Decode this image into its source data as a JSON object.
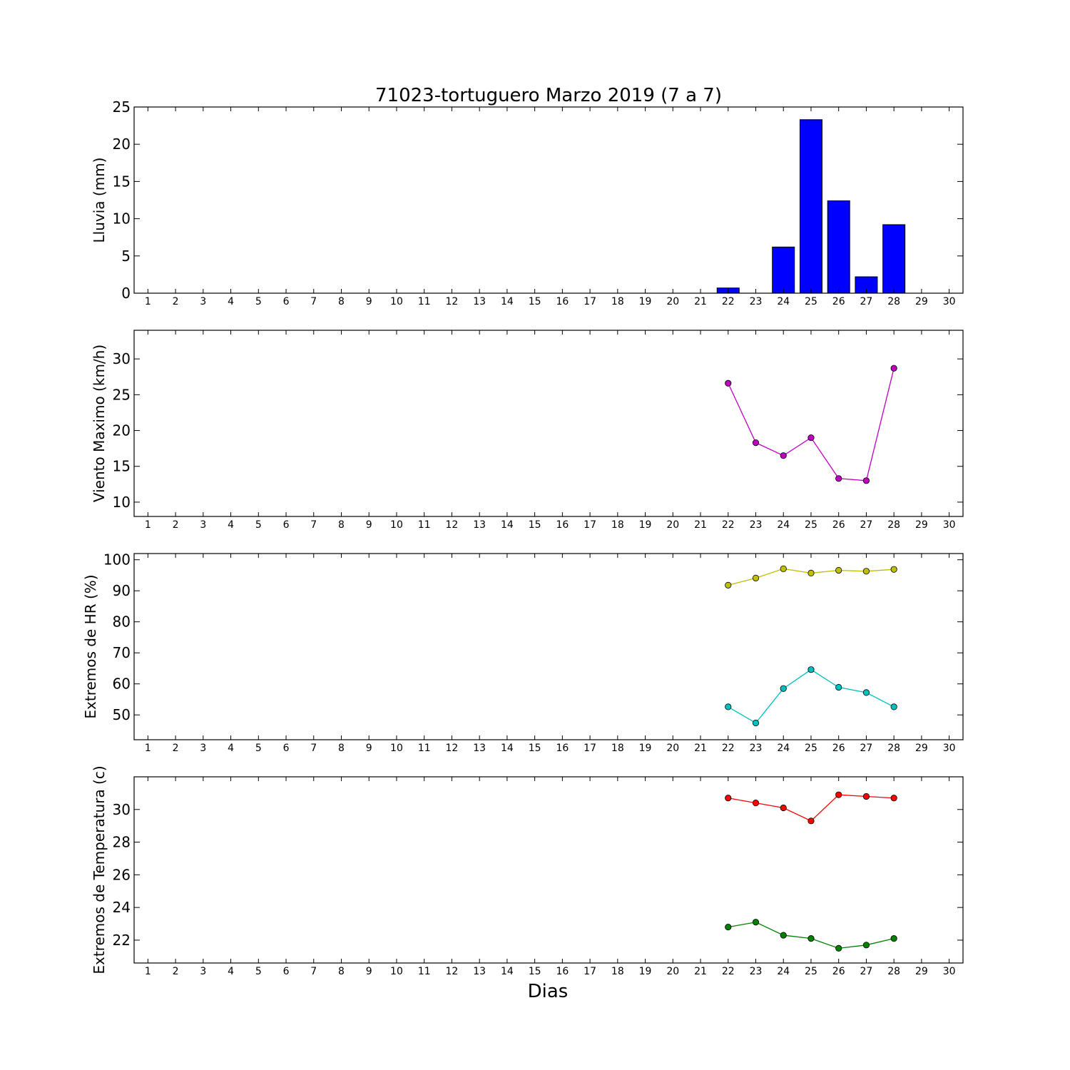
{
  "chart_data": {
    "title": "71023-tortuguero Marzo 2019  (7 a 7)",
    "xlabel": "Dias",
    "x": [
      1,
      2,
      3,
      4,
      5,
      6,
      7,
      8,
      9,
      10,
      11,
      12,
      13,
      14,
      15,
      16,
      17,
      18,
      19,
      20,
      21,
      22,
      23,
      24,
      25,
      26,
      27,
      28,
      29,
      30
    ],
    "xlim": [
      0.5,
      30.5
    ],
    "panels": [
      {
        "type": "bar",
        "ylabel": "Lluvia (mm)",
        "ylim": [
          0,
          25
        ],
        "yticks": [
          0,
          5,
          10,
          15,
          20,
          25
        ],
        "series": [
          {
            "color": "#0000ff",
            "x": [
              22,
              23,
              24,
              25,
              26,
              27,
              28
            ],
            "values": [
              0.7,
              0.0,
              6.2,
              23.3,
              12.4,
              2.2,
              9.2
            ]
          }
        ]
      },
      {
        "type": "line",
        "ylabel": "Viento Maximo (km/h)",
        "ylim": [
          8,
          34
        ],
        "yticks": [
          10,
          15,
          20,
          25,
          30
        ],
        "series": [
          {
            "color": "#bf00bf",
            "x": [
              22,
              23,
              24,
              25,
              26,
              27,
              28
            ],
            "values": [
              26.6,
              18.3,
              16.5,
              19.0,
              13.3,
              13.0,
              28.7
            ]
          }
        ]
      },
      {
        "type": "line",
        "ylabel": "Extremos de HR (%)",
        "ylim": [
          42,
          102
        ],
        "yticks": [
          50,
          60,
          70,
          80,
          90,
          100
        ],
        "series": [
          {
            "color": "#bfbf00",
            "x": [
              22,
              23,
              24,
              25,
              26,
              27,
              28
            ],
            "values": [
              91.8,
              94.1,
              97.1,
              95.7,
              96.6,
              96.3,
              96.9
            ]
          },
          {
            "color": "#00bfbf",
            "x": [
              22,
              23,
              24,
              25,
              26,
              27,
              28
            ],
            "values": [
              52.6,
              47.4,
              58.5,
              64.6,
              58.9,
              57.2,
              52.6
            ]
          }
        ]
      },
      {
        "type": "line",
        "ylabel": "Extremos de Temperatura (c)",
        "ylim": [
          20.6,
          32.0
        ],
        "yticks": [
          22,
          24,
          26,
          28,
          30
        ],
        "series": [
          {
            "color": "#ff0000",
            "x": [
              22,
              23,
              24,
              25,
              26,
              27,
              28
            ],
            "values": [
              30.7,
              30.4,
              30.1,
              29.3,
              30.9,
              30.8,
              30.7
            ]
          },
          {
            "color": "#008000",
            "x": [
              22,
              23,
              24,
              25,
              26,
              27,
              28
            ],
            "values": [
              22.8,
              23.1,
              22.3,
              22.1,
              21.5,
              21.7,
              22.1
            ]
          }
        ]
      }
    ],
    "grid": false,
    "legend": "none"
  }
}
